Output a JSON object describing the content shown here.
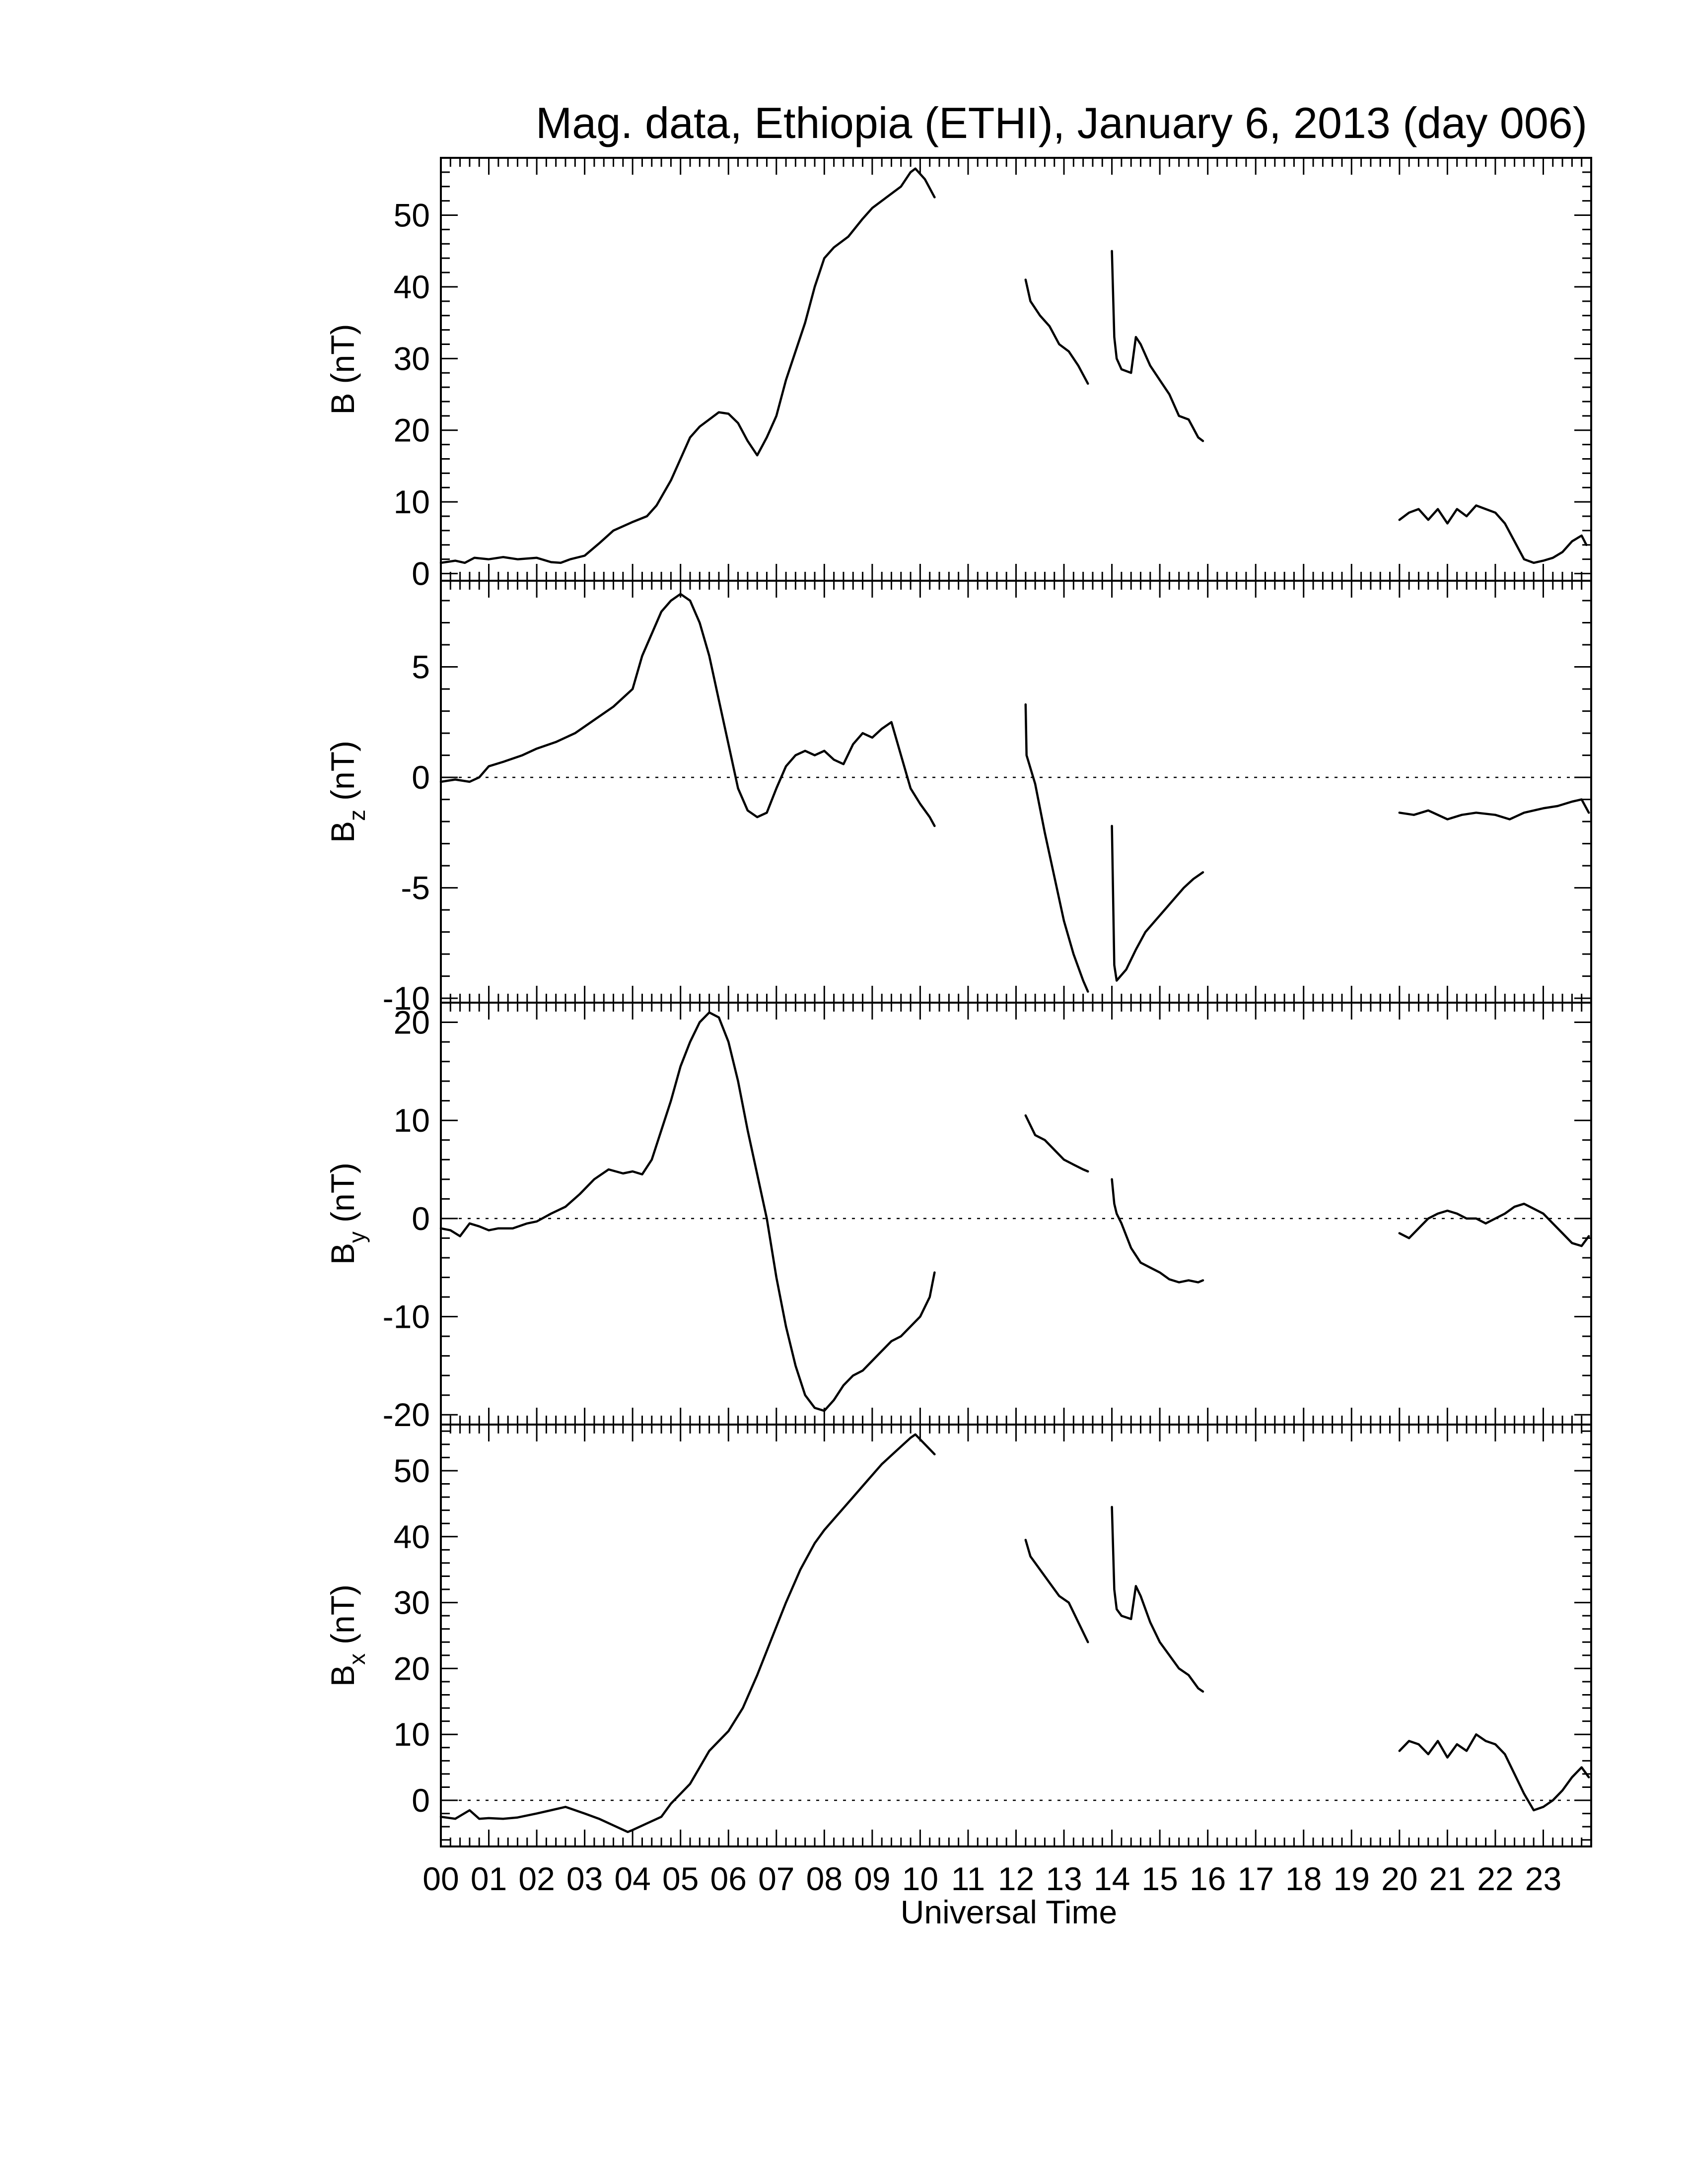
{
  "title": "Mag. data, Ethiopia (ETHI), January 6, 2013 (day 006)",
  "xlabel": "Universal Time",
  "chart_data": [
    {
      "type": "line",
      "id": "B",
      "ylabel": {
        "main": "B",
        "sub": "",
        "unit": "(nT)"
      },
      "ylim": [
        -1,
        58
      ],
      "yticks": [
        0,
        10,
        20,
        30,
        40,
        50
      ],
      "zero_line": false,
      "x_unit": "hours UT",
      "segments": [
        {
          "x": [
            0.0,
            0.3,
            0.5,
            0.7,
            1.0,
            1.3,
            1.6,
            2.0,
            2.3,
            2.5,
            2.7,
            3.0,
            3.3,
            3.6,
            4.0,
            4.3,
            4.5,
            4.8,
            5.0,
            5.2,
            5.4,
            5.6,
            5.8,
            6.0,
            6.2,
            6.4,
            6.6,
            6.8,
            7.0,
            7.2,
            7.4,
            7.6,
            7.8,
            8.0,
            8.2,
            8.5,
            8.8,
            9.0,
            9.3,
            9.6,
            9.8,
            9.9,
            10.1,
            10.3
          ],
          "y": [
            1.5,
            1.8,
            1.5,
            2.2,
            2.0,
            2.3,
            2.0,
            2.2,
            1.6,
            1.5,
            2.0,
            2.5,
            4.2,
            6.0,
            7.2,
            8.0,
            9.5,
            13.0,
            16.0,
            19.0,
            20.5,
            21.5,
            22.5,
            22.3,
            21.0,
            18.5,
            16.5,
            19.0,
            22.0,
            27.0,
            31.0,
            35.0,
            40.0,
            44.0,
            45.5,
            47.0,
            49.5,
            51.0,
            52.5,
            54.0,
            56.0,
            56.5,
            55.0,
            52.5
          ]
        },
        {
          "x": [
            12.2,
            12.3,
            12.5,
            12.7,
            12.9,
            13.1,
            13.3,
            13.5
          ],
          "y": [
            41.0,
            38.0,
            36.0,
            34.5,
            32.0,
            31.0,
            29.0,
            26.5
          ]
        },
        {
          "x": [
            14.0,
            14.05,
            14.1,
            14.2,
            14.4,
            14.5,
            14.6,
            14.8,
            15.0,
            15.2,
            15.4,
            15.6,
            15.8,
            15.9
          ],
          "y": [
            45.0,
            33.0,
            30.0,
            28.5,
            28.0,
            33.0,
            32.0,
            29.0,
            27.0,
            25.0,
            22.0,
            21.5,
            19.0,
            18.5
          ]
        },
        {
          "x": [
            20.0,
            20.2,
            20.4,
            20.6,
            20.8,
            21.0,
            21.2,
            21.4,
            21.6,
            21.8,
            22.0,
            22.2,
            22.4,
            22.6,
            22.8,
            23.0,
            23.2,
            23.4,
            23.6,
            23.8,
            23.9
          ],
          "y": [
            7.5,
            8.5,
            9.0,
            7.5,
            9.0,
            7.0,
            9.0,
            8.0,
            9.5,
            9.0,
            8.5,
            7.0,
            4.5,
            2.0,
            1.5,
            1.8,
            2.2,
            3.0,
            4.5,
            5.3,
            4.0
          ]
        }
      ]
    },
    {
      "type": "line",
      "id": "Bz",
      "ylabel": {
        "main": "B",
        "sub": "z",
        "unit": "(nT)"
      },
      "ylim": [
        -10.2,
        8.9
      ],
      "yticks": [
        -10,
        -5,
        0,
        5
      ],
      "zero_line": true,
      "x_unit": "hours UT",
      "segments": [
        {
          "x": [
            0.0,
            0.3,
            0.6,
            0.8,
            1.0,
            1.3,
            1.7,
            2.0,
            2.4,
            2.8,
            3.2,
            3.6,
            4.0,
            4.2,
            4.4,
            4.6,
            4.8,
            5.0,
            5.2,
            5.4,
            5.6,
            5.8,
            6.0,
            6.2,
            6.4,
            6.6,
            6.8,
            7.0,
            7.2,
            7.4,
            7.6,
            7.8,
            8.0,
            8.2,
            8.4,
            8.6,
            8.8,
            9.0,
            9.2,
            9.4,
            9.6,
            9.8,
            10.0,
            10.2,
            10.3
          ],
          "y": [
            -0.2,
            -0.1,
            -0.2,
            0.0,
            0.5,
            0.7,
            1.0,
            1.3,
            1.6,
            2.0,
            2.6,
            3.2,
            4.0,
            5.5,
            6.5,
            7.5,
            8.0,
            8.3,
            8.0,
            7.0,
            5.5,
            3.5,
            1.5,
            -0.5,
            -1.5,
            -1.8,
            -1.6,
            -0.5,
            0.5,
            1.0,
            1.2,
            1.0,
            1.2,
            0.8,
            0.6,
            1.5,
            2.0,
            1.8,
            2.2,
            2.5,
            1.0,
            -0.5,
            -1.2,
            -1.8,
            -2.2
          ]
        },
        {
          "x": [
            12.2,
            12.22,
            12.4,
            12.6,
            12.8,
            13.0,
            13.2,
            13.4,
            13.5
          ],
          "y": [
            3.3,
            1.0,
            -0.3,
            -2.5,
            -4.5,
            -6.5,
            -8.0,
            -9.2,
            -9.7
          ]
        },
        {
          "x": [
            14.0,
            14.05,
            14.1,
            14.3,
            14.5,
            14.7,
            14.9,
            15.1,
            15.3,
            15.5,
            15.7,
            15.9
          ],
          "y": [
            -2.2,
            -8.5,
            -9.2,
            -8.7,
            -7.8,
            -7.0,
            -6.5,
            -6.0,
            -5.5,
            -5.0,
            -4.6,
            -4.3
          ]
        },
        {
          "x": [
            20.0,
            20.3,
            20.6,
            21.0,
            21.3,
            21.6,
            22.0,
            22.3,
            22.6,
            23.0,
            23.3,
            23.6,
            23.8,
            23.95
          ],
          "y": [
            -1.6,
            -1.7,
            -1.5,
            -1.9,
            -1.7,
            -1.6,
            -1.7,
            -1.9,
            -1.6,
            -1.4,
            -1.3,
            -1.1,
            -1.0,
            -1.6
          ]
        }
      ]
    },
    {
      "type": "line",
      "id": "By",
      "ylabel": {
        "main": "B",
        "sub": "y",
        "unit": "(nT)"
      },
      "ylim": [
        -21,
        22
      ],
      "yticks": [
        -20,
        -10,
        0,
        10,
        20
      ],
      "zero_line": true,
      "x_unit": "hours UT",
      "segments": [
        {
          "x": [
            0.0,
            0.2,
            0.4,
            0.6,
            0.8,
            1.0,
            1.2,
            1.5,
            1.8,
            2.0,
            2.3,
            2.6,
            2.9,
            3.2,
            3.5,
            3.8,
            4.0,
            4.2,
            4.4,
            4.6,
            4.8,
            5.0,
            5.2,
            5.4,
            5.6,
            5.8,
            6.0,
            6.2,
            6.4,
            6.6,
            6.8,
            7.0,
            7.2,
            7.4,
            7.6,
            7.8,
            8.0,
            8.2,
            8.4,
            8.6,
            8.8,
            9.0,
            9.2,
            9.4,
            9.6,
            9.8,
            10.0,
            10.2,
            10.3
          ],
          "y": [
            -1.0,
            -1.2,
            -1.8,
            -0.5,
            -0.8,
            -1.2,
            -1.0,
            -1.0,
            -0.5,
            -0.3,
            0.5,
            1.2,
            2.5,
            4.0,
            5.0,
            4.6,
            4.8,
            4.5,
            6.0,
            9.0,
            12.0,
            15.5,
            18.0,
            20.0,
            21.0,
            20.5,
            18.0,
            14.0,
            9.0,
            4.5,
            0.0,
            -6.0,
            -11.0,
            -15.0,
            -18.0,
            -19.3,
            -19.6,
            -18.5,
            -17.0,
            -16.0,
            -15.5,
            -14.5,
            -13.5,
            -12.5,
            -12.0,
            -11.0,
            -10.0,
            -8.0,
            -5.5
          ]
        },
        {
          "x": [
            12.2,
            12.4,
            12.6,
            12.8,
            13.0,
            13.2,
            13.4,
            13.5
          ],
          "y": [
            10.5,
            8.5,
            8.0,
            7.0,
            6.0,
            5.5,
            5.0,
            4.8
          ]
        },
        {
          "x": [
            14.0,
            14.05,
            14.1,
            14.2,
            14.4,
            14.6,
            14.8,
            15.0,
            15.2,
            15.4,
            15.6,
            15.8,
            15.9
          ],
          "y": [
            4.0,
            1.5,
            0.5,
            -0.5,
            -3.0,
            -4.5,
            -5.0,
            -5.5,
            -6.2,
            -6.5,
            -6.3,
            -6.5,
            -6.3
          ]
        },
        {
          "x": [
            20.0,
            20.2,
            20.4,
            20.6,
            20.8,
            21.0,
            21.2,
            21.4,
            21.6,
            21.8,
            22.0,
            22.2,
            22.4,
            22.6,
            22.8,
            23.0,
            23.2,
            23.4,
            23.6,
            23.8,
            23.95
          ],
          "y": [
            -1.5,
            -2.0,
            -1.0,
            0.0,
            0.5,
            0.8,
            0.5,
            0.0,
            0.0,
            -0.5,
            0.0,
            0.5,
            1.2,
            1.5,
            1.0,
            0.5,
            -0.5,
            -1.5,
            -2.5,
            -2.8,
            -1.8
          ]
        }
      ]
    },
    {
      "type": "line",
      "id": "Bx",
      "ylabel": {
        "main": "B",
        "sub": "x",
        "unit": "(nT)"
      },
      "ylim": [
        -7,
        57
      ],
      "yticks": [
        0,
        10,
        20,
        30,
        40,
        50
      ],
      "zero_line": true,
      "x_unit": "hours UT",
      "segments": [
        {
          "x": [
            0.0,
            0.3,
            0.6,
            0.8,
            1.0,
            1.3,
            1.6,
            2.0,
            2.3,
            2.6,
            3.0,
            3.3,
            3.6,
            3.9,
            4.0,
            4.3,
            4.6,
            4.8,
            5.0,
            5.2,
            5.4,
            5.6,
            5.8,
            6.0,
            6.3,
            6.6,
            6.9,
            7.2,
            7.5,
            7.8,
            8.0,
            8.3,
            8.6,
            8.9,
            9.2,
            9.5,
            9.8,
            9.9,
            10.1,
            10.3
          ],
          "y": [
            -2.5,
            -2.8,
            -1.5,
            -2.8,
            -2.7,
            -2.8,
            -2.6,
            -2.0,
            -1.5,
            -1.0,
            -2.0,
            -2.8,
            -3.8,
            -4.8,
            -4.5,
            -3.5,
            -2.5,
            -0.5,
            1.0,
            2.5,
            5.0,
            7.5,
            9.0,
            10.5,
            14.0,
            19.0,
            24.5,
            30.0,
            35.0,
            39.0,
            41.0,
            43.5,
            46.0,
            48.5,
            51.0,
            53.0,
            55.0,
            55.5,
            54.0,
            52.5
          ]
        },
        {
          "x": [
            12.2,
            12.3,
            12.5,
            12.7,
            12.9,
            13.1,
            13.3,
            13.5
          ],
          "y": [
            39.5,
            37.0,
            35.0,
            33.0,
            31.0,
            30.0,
            27.0,
            24.0
          ]
        },
        {
          "x": [
            14.0,
            14.05,
            14.1,
            14.2,
            14.4,
            14.5,
            14.6,
            14.8,
            15.0,
            15.2,
            15.4,
            15.6,
            15.8,
            15.9
          ],
          "y": [
            44.5,
            32.0,
            29.0,
            28.0,
            27.5,
            32.5,
            31.0,
            27.0,
            24.0,
            22.0,
            20.0,
            19.0,
            17.0,
            16.5
          ]
        },
        {
          "x": [
            20.0,
            20.2,
            20.4,
            20.6,
            20.8,
            21.0,
            21.2,
            21.4,
            21.6,
            21.8,
            22.0,
            22.2,
            22.4,
            22.6,
            22.8,
            23.0,
            23.2,
            23.4,
            23.6,
            23.8,
            23.95
          ],
          "y": [
            7.5,
            9.0,
            8.5,
            7.0,
            9.0,
            6.5,
            8.5,
            7.5,
            10.0,
            9.0,
            8.5,
            7.0,
            4.0,
            1.0,
            -1.5,
            -1.0,
            0.0,
            1.5,
            3.5,
            5.0,
            3.5
          ]
        }
      ]
    }
  ],
  "x_axis": {
    "range": [
      0,
      24
    ],
    "tick_labels": [
      "00",
      "01",
      "02",
      "03",
      "04",
      "05",
      "06",
      "07",
      "08",
      "09",
      "10",
      "11",
      "12",
      "13",
      "14",
      "15",
      "16",
      "17",
      "18",
      "19",
      "20",
      "21",
      "22",
      "23"
    ]
  }
}
